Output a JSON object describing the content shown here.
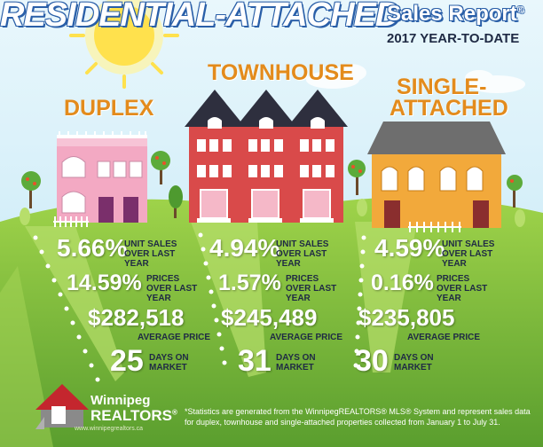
{
  "header": {
    "title": "RESIDENTIAL-ATTACHED",
    "subtitle": "Sales Report",
    "subtitle_mark": "®",
    "period": "2017 YEAR-TO-DATE"
  },
  "sections": [
    {
      "title": "DUPLEX",
      "unit_sales_pct": "5.66%",
      "unit_sales_label": "UNIT SALES OVER LAST YEAR",
      "prices_pct": "14.59%",
      "prices_label": "PRICES OVER LAST YEAR",
      "avg_price": "$282,518",
      "avg_price_label": "AVERAGE PRICE",
      "days": "25",
      "days_label": "DAYS ON MARKET"
    },
    {
      "title": "TOWNHOUSE",
      "unit_sales_pct": "4.94%",
      "unit_sales_label": "UNIT SALES OVER LAST YEAR",
      "prices_pct": "1.57%",
      "prices_label": "PRICES OVER LAST YEAR",
      "avg_price": "$245,489",
      "avg_price_label": "AVERAGE PRICE",
      "days": "31",
      "days_label": "DAYS ON MARKET"
    },
    {
      "title_line1": "SINGLE-",
      "title_line2": "ATTACHED",
      "unit_sales_pct": "4.59%",
      "unit_sales_label": "UNIT SALES OVER LAST YEAR",
      "prices_pct": "0.16%",
      "prices_label": "PRICES OVER LAST YEAR",
      "avg_price": "$235,805",
      "avg_price_label": "AVERAGE PRICE",
      "days": "30",
      "days_label": "DAYS ON MARKET"
    }
  ],
  "logo": {
    "line1": "Winnipeg",
    "line2": "REALTORS",
    "mark": "®",
    "url": "www.winnipegrealtors.ca"
  },
  "footnote": "*Statistics are generated from the WinnipegREALTORS® MLS® System and represent sales data for duplex, townhouse and single-attached properties collected from January 1 to July 31.",
  "colors": {
    "sky": "#bfe6f5",
    "grass": "#8cc63f",
    "grass_dark": "#5a9e2e",
    "accent_orange": "#e38b1c",
    "duplex": "#f3a9c3",
    "townhouse": "#d94a4a",
    "single_attached": "#f2a93b",
    "logo_red": "#c4262e"
  }
}
